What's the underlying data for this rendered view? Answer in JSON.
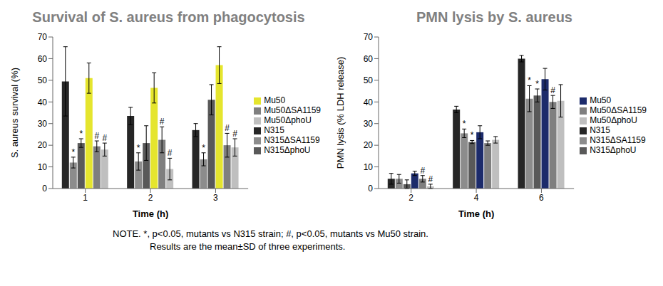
{
  "chart_data": [
    {
      "type": "bar",
      "title": "Survival of S. aureus from phagocytosis",
      "x_label": "Time (h)",
      "y_label": "S. aureus survival (%)",
      "categories": [
        1,
        2,
        3
      ],
      "ylim": [
        0,
        70
      ],
      "yticks": [
        0,
        10,
        20,
        30,
        40,
        50,
        60,
        70
      ],
      "grid": false,
      "legend": "right",
      "series": [
        {
          "name": "N315",
          "color": "#262626",
          "values": [
            49.5,
            33.5,
            27
          ],
          "errors": [
            16,
            4,
            3
          ],
          "significance": [
            null,
            null,
            null
          ]
        },
        {
          "name": "N315ΔSA1159",
          "color": "#8c8c8c",
          "values": [
            12,
            12.5,
            13.5
          ],
          "errors": [
            2.5,
            4,
            3
          ],
          "significance": [
            "*",
            "*",
            "*"
          ]
        },
        {
          "name": "N315ΔphoU",
          "color": "#595959",
          "values": [
            21,
            21,
            41
          ],
          "errors": [
            2,
            8,
            7
          ],
          "significance": [
            "*",
            null,
            null
          ]
        },
        {
          "name": "Mu50",
          "color": "#e5e52e",
          "values": [
            51,
            46.5,
            57
          ],
          "errors": [
            7,
            7,
            8.5
          ],
          "significance": [
            null,
            null,
            null
          ]
        },
        {
          "name": "Mu50ΔSA1159",
          "color": "#7f7f7f",
          "values": [
            19.5,
            22.5,
            20
          ],
          "errors": [
            2.5,
            6,
            5.5
          ],
          "significance": [
            "#",
            "#",
            "#"
          ]
        },
        {
          "name": "Mu50ΔphoU",
          "color": "#bfbfbf",
          "values": [
            18,
            9,
            19
          ],
          "errors": [
            3,
            5,
            4
          ],
          "significance": [
            "#",
            "#",
            "#"
          ]
        }
      ]
    },
    {
      "type": "bar",
      "title": "PMN lysis by S. aureus",
      "x_label": "Time (h)",
      "y_label": "PMN lysis (% LDH release)",
      "categories": [
        2,
        4,
        6
      ],
      "ylim": [
        0,
        70
      ],
      "yticks": [
        0,
        10,
        20,
        30,
        40,
        50,
        60,
        70
      ],
      "grid": false,
      "legend": "right",
      "series": [
        {
          "name": "N315",
          "color": "#262626",
          "values": [
            4.5,
            36.5,
            60
          ],
          "errors": [
            2.5,
            1.5,
            1.5
          ],
          "significance": [
            null,
            null,
            null
          ]
        },
        {
          "name": "N315ΔSA1159",
          "color": "#8c8c8c",
          "values": [
            4.5,
            25.5,
            41.5
          ],
          "errors": [
            2,
            2,
            6
          ],
          "significance": [
            null,
            "*",
            "*"
          ]
        },
        {
          "name": "N315ΔphoU",
          "color": "#595959",
          "values": [
            2,
            21.5,
            43
          ],
          "errors": [
            2,
            0.7,
            3
          ],
          "significance": [
            null,
            "*",
            "*"
          ]
        },
        {
          "name": "Mu50",
          "color": "#1c2b6b",
          "values": [
            7,
            26,
            50.5
          ],
          "errors": [
            1,
            3,
            5
          ],
          "significance": [
            null,
            null,
            null
          ]
        },
        {
          "name": "Mu50ΔSA1159",
          "color": "#7f7f7f",
          "values": [
            4.5,
            21,
            40
          ],
          "errors": [
            1.5,
            1,
            3
          ],
          "significance": [
            "#",
            null,
            "#"
          ]
        },
        {
          "name": "Mu50ΔphoU",
          "color": "#bfbfbf",
          "values": [
            1,
            22.5,
            40.5
          ],
          "errors": [
            1,
            1.5,
            7.5
          ],
          "significance": [
            "#",
            null,
            null
          ]
        }
      ]
    }
  ],
  "notes": [
    "NOTE. *, p<0.05, mutants vs N315 strain; #, p<0.05, mutants vs Mu50 strain.",
    "Results are the mean±SD of three experiments."
  ]
}
